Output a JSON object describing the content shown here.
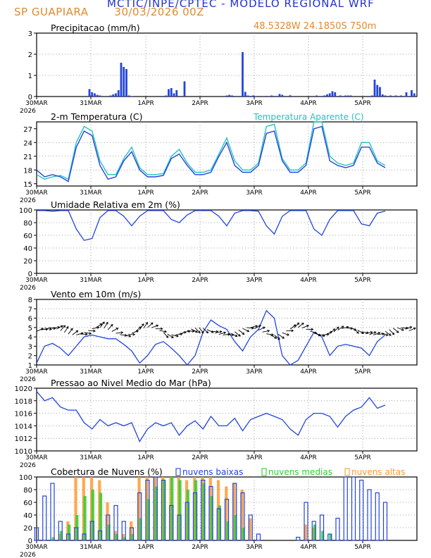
{
  "header": {
    "title": "MCTIC/INPE/CPTEC - MODELO REGIONAL WRF",
    "location": "SP GUAPIARA",
    "run": "30/03/2026 00Z",
    "coords": "48.5328W 24.1850S 750m"
  },
  "colors": {
    "title": "#2233cc",
    "orange": "#e08a30",
    "series": "#2244dd",
    "apparent": "#22c2c2",
    "low_clouds": "#2244dd",
    "mid_clouds": "#33cc33",
    "high_clouds": "#ff9933"
  },
  "time_axis": {
    "labels": [
      "30MAR",
      "31MAR",
      "1APR",
      "2APR",
      "3APR",
      "4APR",
      "5APR"
    ],
    "year": "2026"
  },
  "chart_data": [
    {
      "id": "precip",
      "type": "bar",
      "title": "Precipitacao (mm/h)",
      "ylim": [
        0,
        3
      ],
      "yticks": [
        0,
        1,
        2,
        3
      ],
      "x_unit": "hour since 30MAR 00Z",
      "x": [
        20,
        21,
        22,
        23,
        24,
        28,
        29,
        30,
        31,
        32,
        33,
        34,
        35,
        36,
        49,
        50,
        51,
        52,
        53,
        56,
        72,
        73,
        74,
        78,
        79,
        80,
        81,
        82,
        83,
        87,
        89,
        92,
        93,
        96,
        106,
        109,
        110,
        111,
        112,
        113,
        115,
        117,
        118,
        119,
        127,
        128,
        129,
        130,
        131,
        132,
        134,
        136,
        138,
        140,
        142,
        143
      ],
      "values": [
        0.35,
        0.2,
        0.15,
        0.08,
        0.05,
        0.05,
        0.1,
        0.15,
        0.3,
        1.6,
        1.4,
        1.3,
        0.05,
        0.02,
        0.05,
        0.35,
        0.4,
        0.15,
        0.3,
        0.72,
        0.05,
        0.08,
        0.05,
        2.1,
        0.22,
        0.05,
        0.03,
        0.05,
        0.02,
        0.03,
        0.05,
        0.12,
        0.08,
        0.06,
        0.05,
        0.05,
        0.1,
        0.15,
        0.25,
        0.2,
        0.05,
        0.05,
        0.05,
        0.05,
        0.05,
        0.8,
        0.55,
        0.45,
        0.1,
        0.05,
        0.05,
        0.05,
        0.05,
        0.2,
        0.3,
        0.15
      ]
    },
    {
      "id": "temperature",
      "type": "line",
      "title": "2-m Temperatura (C)",
      "legend": "Temperatura Aparente (C)",
      "ylim": [
        14.5,
        28.5
      ],
      "yticks": [
        15,
        18,
        21,
        24,
        27
      ],
      "step_hours": 3,
      "series": [
        {
          "name": "Temperatura",
          "values": [
            18,
            16.5,
            17,
            16.5,
            15.5,
            23,
            26.5,
            25.5,
            19,
            16,
            16.5,
            20,
            22,
            18,
            16.5,
            16.5,
            16.8,
            20.5,
            21.5,
            19,
            17,
            17,
            17.5,
            21,
            24,
            19,
            17.5,
            17.5,
            19,
            26,
            26.5,
            20,
            17.5,
            17.5,
            19,
            27,
            27.5,
            20,
            19,
            18.5,
            19,
            23,
            23,
            19.5,
            18.5
          ]
        },
        {
          "name": "Temperatura Aparente",
          "values": [
            17,
            16,
            16.5,
            16.8,
            16,
            24,
            27.5,
            26.5,
            20,
            17,
            17,
            20.5,
            23,
            18.5,
            17,
            17,
            17.2,
            21,
            22.5,
            19.5,
            17.5,
            17.5,
            18,
            21.5,
            25,
            20,
            18,
            18,
            19.5,
            27.5,
            28,
            20.5,
            18,
            18,
            19.5,
            28.5,
            28.5,
            21,
            19.5,
            19,
            19.5,
            24,
            24,
            20,
            19
          ]
        }
      ]
    },
    {
      "id": "humidity",
      "type": "line",
      "title": "Umidade Relativa em 2m (%)",
      "ylim": [
        0,
        100
      ],
      "yticks": [
        0,
        20,
        40,
        60,
        80,
        100
      ],
      "step_hours": 3,
      "series": [
        {
          "name": "Umidade",
          "values": [
            99,
            99,
            98,
            99,
            99,
            70,
            52,
            55,
            88,
            99,
            99,
            90,
            75,
            90,
            99,
            99,
            99,
            85,
            80,
            92,
            99,
            99,
            99,
            90,
            75,
            95,
            99,
            99,
            98,
            75,
            62,
            90,
            99,
            99,
            99,
            70,
            60,
            85,
            99,
            99,
            99,
            78,
            75,
            95,
            98
          ]
        }
      ]
    },
    {
      "id": "wind",
      "type": "line",
      "title": "Vento em 10m (m/s)",
      "ylim": [
        1,
        8
      ],
      "yticks": [
        1,
        2,
        3,
        4,
        5,
        6,
        7,
        8
      ],
      "step_hours": 3,
      "series": [
        {
          "name": "Vento",
          "values": [
            1.2,
            3,
            3.3,
            2.8,
            2,
            3,
            4,
            4.2,
            4,
            3.8,
            3.8,
            3.2,
            2.5,
            1.2,
            2,
            3.2,
            3.5,
            2.8,
            2,
            1,
            2,
            4.5,
            5.8,
            5.2,
            4.8,
            3.5,
            2.5,
            4,
            4.8,
            6.8,
            6,
            2,
            1,
            1.5,
            3,
            4.5,
            4,
            2,
            3,
            3.2,
            3,
            2.8,
            2,
            3.5,
            4.2
          ]
        }
      ]
    },
    {
      "id": "pressure",
      "type": "line",
      "title": "Pressao ao Nivel Medio do Mar (hPa)",
      "ylim": [
        1010,
        1020
      ],
      "yticks": [
        1010,
        1012,
        1014,
        1016,
        1018,
        1020
      ],
      "step_hours": 3,
      "series": [
        {
          "name": "Pressao",
          "values": [
            1019.5,
            1018,
            1018.5,
            1017,
            1016.5,
            1016.5,
            1014.5,
            1013.5,
            1015,
            1014,
            1014.5,
            1014,
            1014.5,
            1011.5,
            1013.5,
            1014.5,
            1014,
            1014.5,
            1012.5,
            1014,
            1014.8,
            1013.5,
            1015.5,
            1014,
            1014,
            1015.2,
            1013.2,
            1015,
            1015.5,
            1016,
            1015.5,
            1015,
            1013.5,
            1012.5,
            1015,
            1016,
            1016,
            1015.5,
            1013.8,
            1015.5,
            1016.5,
            1017,
            1018.5,
            1016.8,
            1017.3
          ]
        }
      ]
    },
    {
      "id": "clouds",
      "type": "bar",
      "title": "Cobertura de Nuvens (%)",
      "legend": [
        "nuvens baixas",
        "nuvens medias",
        "nuvens altas"
      ],
      "ylim": [
        0,
        100
      ],
      "yticks": [
        0,
        20,
        40,
        60,
        80,
        100
      ],
      "step_hours": 3,
      "series": [
        {
          "name": "nuvens baixas",
          "values": [
            20,
            70,
            90,
            30,
            10,
            20,
            10,
            30,
            15,
            40,
            55,
            30,
            20,
            75,
            95,
            100,
            95,
            55,
            40,
            60,
            75,
            95,
            85,
            50,
            65,
            90,
            75,
            40,
            10,
            0,
            0,
            0,
            0,
            5,
            60,
            30,
            40,
            10,
            35,
            100,
            100,
            95,
            80,
            75,
            60
          ]
        },
        {
          "name": "nuvens medias",
          "values": [
            0,
            0,
            5,
            15,
            25,
            40,
            70,
            80,
            75,
            25,
            10,
            5,
            10,
            35,
            65,
            85,
            95,
            100,
            95,
            80,
            95,
            90,
            70,
            55,
            30,
            40,
            20,
            0,
            0,
            0,
            0,
            0,
            0,
            0,
            0,
            25,
            15,
            10,
            0,
            0,
            0,
            0,
            0,
            0,
            0
          ]
        },
        {
          "name": "nuvens altas",
          "values": [
            0,
            0,
            0,
            10,
            30,
            100,
            100,
            100,
            95,
            60,
            15,
            10,
            30,
            100,
            100,
            100,
            100,
            100,
            100,
            95,
            100,
            100,
            100,
            95,
            85,
            90,
            80,
            35,
            0,
            0,
            0,
            0,
            0,
            0,
            25,
            20,
            0,
            0,
            0,
            0,
            0,
            0,
            0,
            0,
            0
          ]
        }
      ]
    }
  ]
}
